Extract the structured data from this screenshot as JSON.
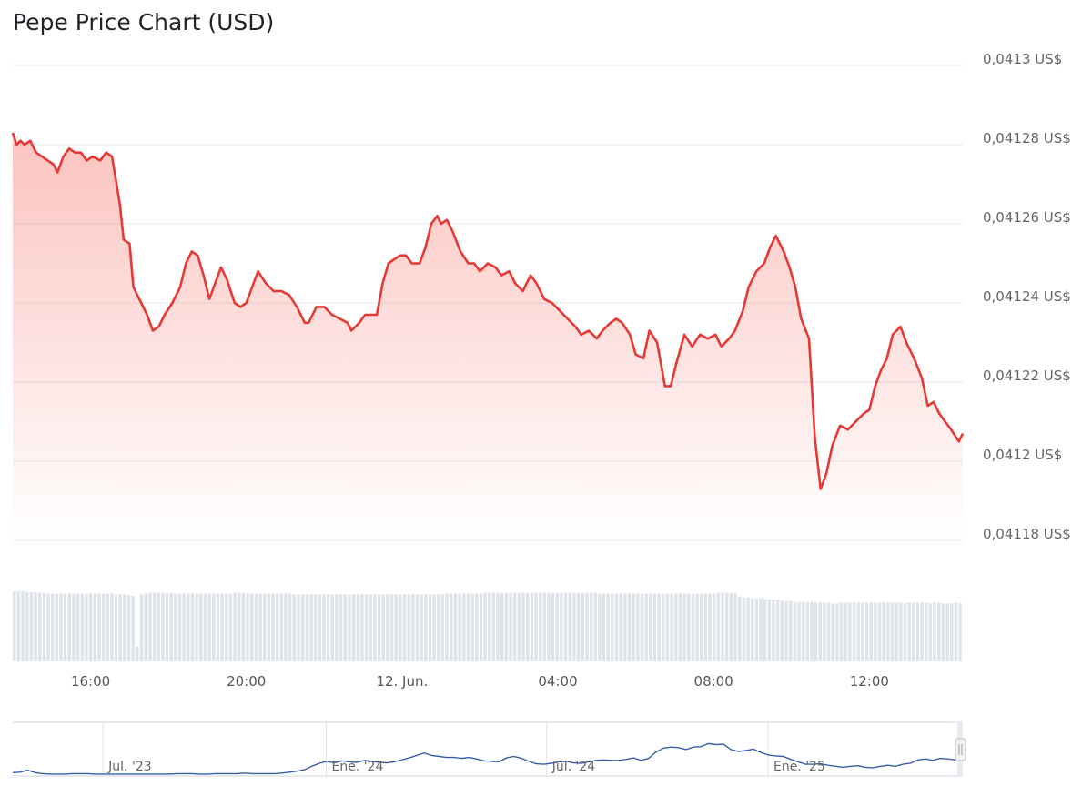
{
  "chart_data": {
    "type": "line",
    "title": "Pepe Price Chart (USD)",
    "yticks": [
      "0,0413 US$",
      "0,04128 US$",
      "0,04126 US$",
      "0,04124 US$",
      "0,04122 US$",
      "0,0412 US$",
      "0,04118 US$"
    ],
    "ytick_values": [
      0.0413,
      0.04128,
      0.04126,
      0.04124,
      0.04122,
      0.0412,
      0.04118
    ],
    "ylim": [
      0.04118,
      0.0413
    ],
    "xticks": [
      "16:00",
      "20:00",
      "12. Jun.",
      "04:00",
      "08:00",
      "12:00"
    ],
    "xtick_hours": [
      16,
      20,
      24,
      28,
      32,
      36
    ],
    "xlim_hours": [
      14,
      38.4
    ],
    "series": [
      {
        "type": "line",
        "color": "#e53935",
        "points": [
          [
            14.0,
            0.041283
          ],
          [
            14.1,
            0.04128
          ],
          [
            14.2,
            0.041281
          ],
          [
            14.3,
            0.04128
          ],
          [
            14.45,
            0.041281
          ],
          [
            14.6,
            0.041278
          ],
          [
            14.75,
            0.041277
          ],
          [
            14.9,
            0.041276
          ],
          [
            15.05,
            0.041275
          ],
          [
            15.15,
            0.041273
          ],
          [
            15.3,
            0.041277
          ],
          [
            15.45,
            0.041279
          ],
          [
            15.6,
            0.041278
          ],
          [
            15.75,
            0.041278
          ],
          [
            15.9,
            0.041276
          ],
          [
            16.05,
            0.041277
          ],
          [
            16.25,
            0.041276
          ],
          [
            16.4,
            0.041278
          ],
          [
            16.55,
            0.041277
          ],
          [
            16.75,
            0.041265
          ],
          [
            16.85,
            0.041256
          ],
          [
            17.0,
            0.041255
          ],
          [
            17.1,
            0.041244
          ],
          [
            17.2,
            0.041242
          ],
          [
            17.3,
            0.04124
          ],
          [
            17.45,
            0.041237
          ],
          [
            17.6,
            0.041233
          ],
          [
            17.75,
            0.041234
          ],
          [
            17.9,
            0.041237
          ],
          [
            18.1,
            0.04124
          ],
          [
            18.3,
            0.041244
          ],
          [
            18.45,
            0.04125
          ],
          [
            18.6,
            0.041253
          ],
          [
            18.75,
            0.041252
          ],
          [
            18.9,
            0.041247
          ],
          [
            19.05,
            0.041241
          ],
          [
            19.2,
            0.041245
          ],
          [
            19.35,
            0.041249
          ],
          [
            19.5,
            0.041246
          ],
          [
            19.7,
            0.04124
          ],
          [
            19.85,
            0.041239
          ],
          [
            20.0,
            0.04124
          ],
          [
            20.15,
            0.041244
          ],
          [
            20.3,
            0.041248
          ],
          [
            20.5,
            0.041245
          ],
          [
            20.7,
            0.041243
          ],
          [
            20.9,
            0.041243
          ],
          [
            21.1,
            0.041242
          ],
          [
            21.3,
            0.041239
          ],
          [
            21.5,
            0.041235
          ],
          [
            21.6,
            0.041235
          ],
          [
            21.8,
            0.041239
          ],
          [
            22.0,
            0.041239
          ],
          [
            22.2,
            0.041237
          ],
          [
            22.4,
            0.041236
          ],
          [
            22.6,
            0.041235
          ],
          [
            22.7,
            0.041233
          ],
          [
            22.9,
            0.041235
          ],
          [
            23.05,
            0.041237
          ],
          [
            23.2,
            0.041237
          ],
          [
            23.35,
            0.041237
          ],
          [
            23.5,
            0.041245
          ],
          [
            23.65,
            0.04125
          ],
          [
            23.8,
            0.041251
          ],
          [
            23.95,
            0.041252
          ],
          [
            24.1,
            0.041252
          ],
          [
            24.25,
            0.04125
          ],
          [
            24.45,
            0.04125
          ],
          [
            24.6,
            0.041254
          ],
          [
            24.75,
            0.04126
          ],
          [
            24.9,
            0.041262
          ],
          [
            25.0,
            0.04126
          ],
          [
            25.15,
            0.041261
          ],
          [
            25.3,
            0.041258
          ],
          [
            25.5,
            0.041253
          ],
          [
            25.7,
            0.04125
          ],
          [
            25.85,
            0.04125
          ],
          [
            26.0,
            0.041248
          ],
          [
            26.2,
            0.04125
          ],
          [
            26.4,
            0.041249
          ],
          [
            26.55,
            0.041247
          ],
          [
            26.75,
            0.041248
          ],
          [
            26.9,
            0.041245
          ],
          [
            27.1,
            0.041243
          ],
          [
            27.3,
            0.041247
          ],
          [
            27.45,
            0.041245
          ],
          [
            27.65,
            0.041241
          ],
          [
            27.85,
            0.04124
          ],
          [
            28.05,
            0.041238
          ],
          [
            28.25,
            0.041236
          ],
          [
            28.45,
            0.041234
          ],
          [
            28.6,
            0.041232
          ],
          [
            28.8,
            0.041233
          ],
          [
            29.0,
            0.041231
          ],
          [
            29.15,
            0.041233
          ],
          [
            29.35,
            0.041235
          ],
          [
            29.5,
            0.041236
          ],
          [
            29.65,
            0.041235
          ],
          [
            29.85,
            0.041232
          ],
          [
            30.0,
            0.041227
          ],
          [
            30.2,
            0.041226
          ],
          [
            30.35,
            0.041233
          ],
          [
            30.55,
            0.04123
          ],
          [
            30.75,
            0.041219
          ],
          [
            30.9,
            0.041219
          ],
          [
            31.05,
            0.041225
          ],
          [
            31.25,
            0.041232
          ],
          [
            31.45,
            0.041229
          ],
          [
            31.65,
            0.041232
          ],
          [
            31.85,
            0.041231
          ],
          [
            32.05,
            0.041232
          ],
          [
            32.2,
            0.041229
          ],
          [
            32.4,
            0.041231
          ],
          [
            32.55,
            0.041233
          ],
          [
            32.75,
            0.041238
          ],
          [
            32.9,
            0.041244
          ],
          [
            33.1,
            0.041248
          ],
          [
            33.3,
            0.04125
          ],
          [
            33.45,
            0.041254
          ],
          [
            33.6,
            0.041257
          ],
          [
            33.8,
            0.041253
          ],
          [
            33.95,
            0.041249
          ],
          [
            34.1,
            0.041244
          ],
          [
            34.25,
            0.041236
          ],
          [
            34.45,
            0.041231
          ],
          [
            34.6,
            0.041206
          ],
          [
            34.75,
            0.041193
          ],
          [
            34.9,
            0.041197
          ],
          [
            35.05,
            0.041204
          ],
          [
            35.25,
            0.041209
          ],
          [
            35.45,
            0.041208
          ],
          [
            35.65,
            0.04121
          ],
          [
            35.85,
            0.041212
          ],
          [
            36.0,
            0.041213
          ],
          [
            36.15,
            0.041219
          ],
          [
            36.3,
            0.041223
          ],
          [
            36.45,
            0.041226
          ],
          [
            36.6,
            0.041232
          ],
          [
            36.8,
            0.041234
          ],
          [
            36.95,
            0.04123
          ],
          [
            37.15,
            0.041226
          ],
          [
            37.35,
            0.041221
          ],
          [
            37.5,
            0.041214
          ],
          [
            37.65,
            0.041215
          ],
          [
            37.8,
            0.041212
          ],
          [
            37.95,
            0.04121
          ],
          [
            38.1,
            0.041208
          ],
          [
            38.3,
            0.041205
          ],
          [
            38.4,
            0.041207
          ]
        ]
      }
    ],
    "volume": {
      "type": "bar",
      "color": "#dfe4ea",
      "values": [
        0.93,
        0.93,
        0.93,
        0.92,
        0.92,
        0.92,
        0.91,
        0.91,
        0.9,
        0.9,
        0.9,
        0.9,
        0.9,
        0.9,
        0.9,
        0.9,
        0.9,
        0.9,
        0.9,
        0.9,
        0.9,
        0.9,
        0.9,
        0.9,
        0.89,
        0.89,
        0.89,
        0.88,
        0.87,
        0.2,
        0.89,
        0.9,
        0.91,
        0.91,
        0.91,
        0.91,
        0.91,
        0.91,
        0.9,
        0.9,
        0.9,
        0.9,
        0.9,
        0.9,
        0.9,
        0.9,
        0.9,
        0.9,
        0.9,
        0.9,
        0.9,
        0.9,
        0.91,
        0.91,
        0.91,
        0.9,
        0.9,
        0.9,
        0.9,
        0.9,
        0.9,
        0.9,
        0.9,
        0.9,
        0.9,
        0.9,
        0.89,
        0.89,
        0.89,
        0.89,
        0.89,
        0.89,
        0.89,
        0.89,
        0.89,
        0.89,
        0.89,
        0.89,
        0.89,
        0.89,
        0.89,
        0.89,
        0.89,
        0.89,
        0.89,
        0.89,
        0.89,
        0.89,
        0.89,
        0.89,
        0.89,
        0.89,
        0.89,
        0.89,
        0.89,
        0.89,
        0.89,
        0.89,
        0.89,
        0.89,
        0.89,
        0.89,
        0.9,
        0.9,
        0.9,
        0.9,
        0.9,
        0.9,
        0.9,
        0.9,
        0.9,
        0.91,
        0.91,
        0.91,
        0.91,
        0.91,
        0.91,
        0.91,
        0.91,
        0.91,
        0.91,
        0.91,
        0.91,
        0.91,
        0.91,
        0.91,
        0.91,
        0.91,
        0.91,
        0.91,
        0.91,
        0.91,
        0.91,
        0.91,
        0.91,
        0.91,
        0.91,
        0.91,
        0.9,
        0.9,
        0.9,
        0.9,
        0.9,
        0.9,
        0.9,
        0.9,
        0.9,
        0.9,
        0.9,
        0.9,
        0.9,
        0.9,
        0.9,
        0.9,
        0.9,
        0.9,
        0.9,
        0.9,
        0.9,
        0.9,
        0.9,
        0.9,
        0.9,
        0.9,
        0.9,
        0.9,
        0.91,
        0.91,
        0.91,
        0.91,
        0.9,
        0.86,
        0.85,
        0.85,
        0.84,
        0.84,
        0.84,
        0.83,
        0.82,
        0.82,
        0.82,
        0.81,
        0.8,
        0.8,
        0.79,
        0.79,
        0.79,
        0.79,
        0.79,
        0.78,
        0.78,
        0.78,
        0.78,
        0.77,
        0.77,
        0.78,
        0.78,
        0.78,
        0.78,
        0.78,
        0.78,
        0.78,
        0.78,
        0.78,
        0.78,
        0.78,
        0.78,
        0.78,
        0.78,
        0.78,
        0.77,
        0.78,
        0.78,
        0.78,
        0.78,
        0.78,
        0.77,
        0.78,
        0.78,
        0.77,
        0.77,
        0.77,
        0.78,
        0.77
      ]
    },
    "navigator": {
      "xticks": [
        "Jul. '23",
        "Ene. '24",
        "Jul. '24",
        "Ene. '25"
      ],
      "xtick_pos": [
        0.095,
        0.33,
        0.562,
        0.795
      ],
      "series_color": "#3a5ea8",
      "values": [
        0.05,
        0.06,
        0.1,
        0.05,
        0.03,
        0.02,
        0.02,
        0.02,
        0.03,
        0.03,
        0.03,
        0.02,
        0.02,
        0.02,
        0.02,
        0.02,
        0.02,
        0.02,
        0.02,
        0.02,
        0.02,
        0.02,
        0.03,
        0.03,
        0.03,
        0.02,
        0.02,
        0.03,
        0.03,
        0.03,
        0.03,
        0.04,
        0.03,
        0.03,
        0.03,
        0.03,
        0.04,
        0.06,
        0.08,
        0.11,
        0.18,
        0.24,
        0.28,
        0.25,
        0.29,
        0.27,
        0.26,
        0.3,
        0.28,
        0.26,
        0.25,
        0.27,
        0.31,
        0.35,
        0.4,
        0.45,
        0.4,
        0.38,
        0.36,
        0.36,
        0.34,
        0.36,
        0.33,
        0.29,
        0.28,
        0.27,
        0.35,
        0.38,
        0.34,
        0.28,
        0.23,
        0.22,
        0.24,
        0.27,
        0.28,
        0.25,
        0.24,
        0.27,
        0.3,
        0.31,
        0.3,
        0.3,
        0.32,
        0.35,
        0.3,
        0.34,
        0.47,
        0.55,
        0.57,
        0.56,
        0.52,
        0.57,
        0.58,
        0.64,
        0.62,
        0.63,
        0.52,
        0.48,
        0.5,
        0.53,
        0.46,
        0.41,
        0.39,
        0.38,
        0.32,
        0.27,
        0.22,
        0.22,
        0.23,
        0.2,
        0.18,
        0.16,
        0.18,
        0.19,
        0.16,
        0.15,
        0.18,
        0.2,
        0.18,
        0.22,
        0.24,
        0.31,
        0.33,
        0.3,
        0.34,
        0.33,
        0.31,
        0.3
      ]
    }
  }
}
